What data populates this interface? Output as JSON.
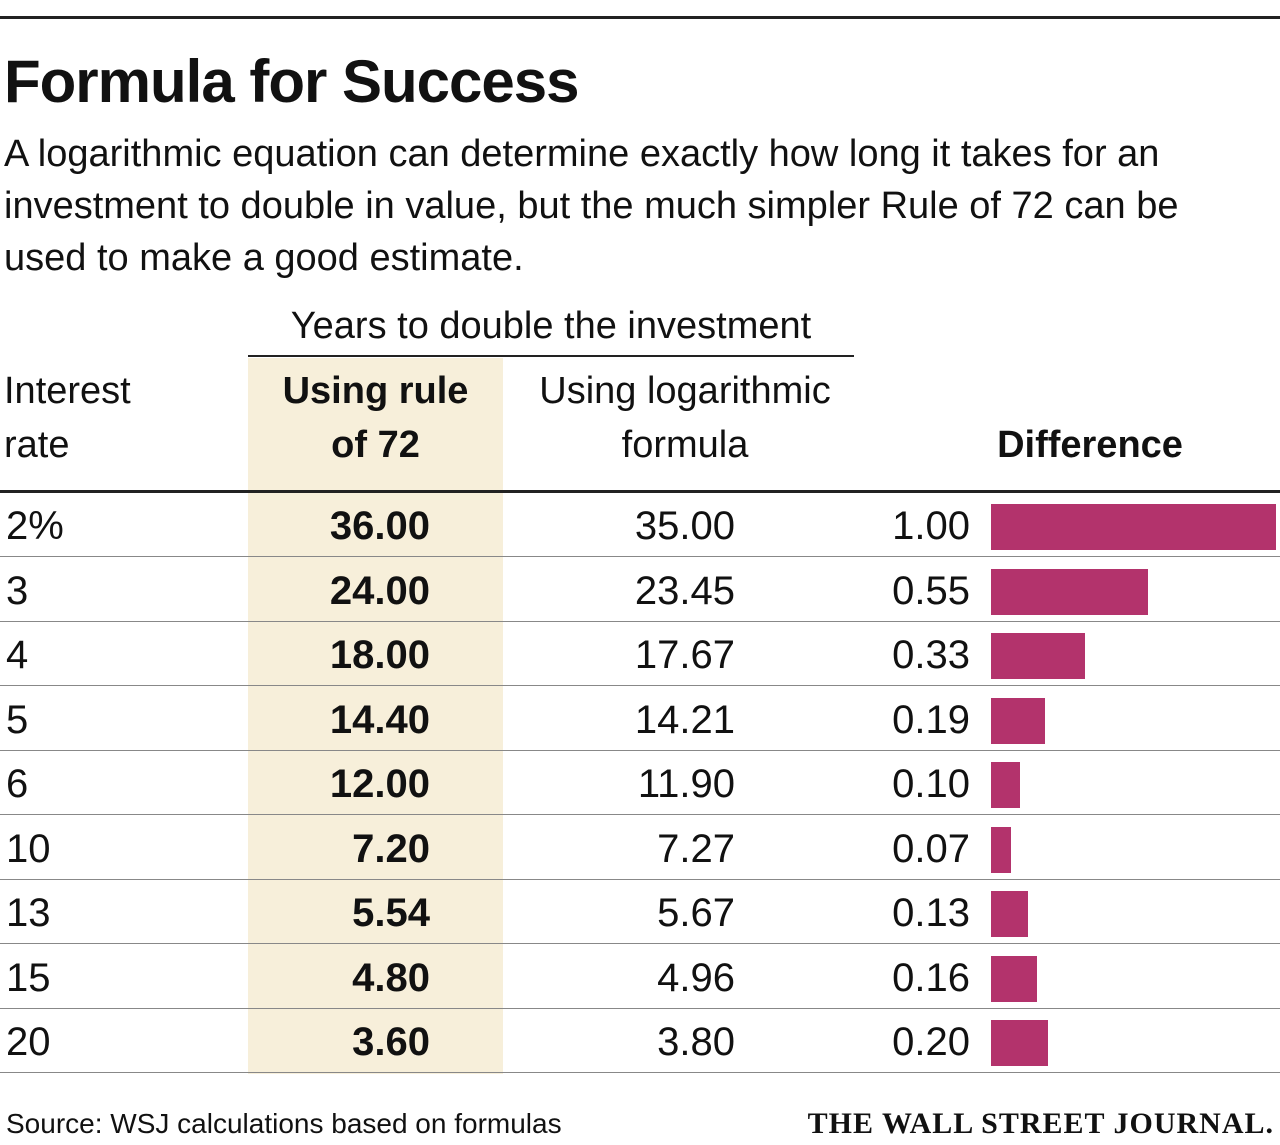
{
  "title": "Formula for Success",
  "subtitle": "A logarithmic equation can determine exactly how long it takes for an investment to double in value, but the much simpler Rule of 72 can be used to make a good estimate.",
  "source": "Source: WSJ calculations based on formulas",
  "publisher": "THE WALL STREET JOURNAL.",
  "colors": {
    "bar": "#b3336c",
    "highlight": "#f7efda"
  },
  "chart_data": {
    "type": "table",
    "group_header": "Years to double the investment",
    "columns": {
      "rate_line1": "Interest",
      "rate_line2": "rate",
      "rule72_line1": "Using rule",
      "rule72_line2": "of 72",
      "log_line1": "Using logarithmic",
      "log_line2": "formula",
      "difference": "Difference"
    },
    "rows": [
      {
        "rate": "2%",
        "rule72": "36.00",
        "log": "35.00",
        "difference": "1.00",
        "diff_value": 1.0
      },
      {
        "rate": "3",
        "rule72": "24.00",
        "log": "23.45",
        "difference": "0.55",
        "diff_value": 0.55
      },
      {
        "rate": "4",
        "rule72": "18.00",
        "log": "17.67",
        "difference": "0.33",
        "diff_value": 0.33
      },
      {
        "rate": "5",
        "rule72": "14.40",
        "log": "14.21",
        "difference": "0.19",
        "diff_value": 0.19
      },
      {
        "rate": "6",
        "rule72": "12.00",
        "log": "11.90",
        "difference": "0.10",
        "diff_value": 0.1
      },
      {
        "rate": "10",
        "rule72": "7.20",
        "log": "7.27",
        "difference": "0.07",
        "diff_value": 0.07
      },
      {
        "rate": "13",
        "rule72": "5.54",
        "log": "5.67",
        "difference": "0.13",
        "diff_value": 0.13
      },
      {
        "rate": "15",
        "rule72": "4.80",
        "log": "4.96",
        "difference": "0.16",
        "diff_value": 0.16
      },
      {
        "rate": "20",
        "rule72": "3.60",
        "log": "3.80",
        "difference": "0.20",
        "diff_value": 0.2
      }
    ],
    "diff_max": 1.0
  }
}
